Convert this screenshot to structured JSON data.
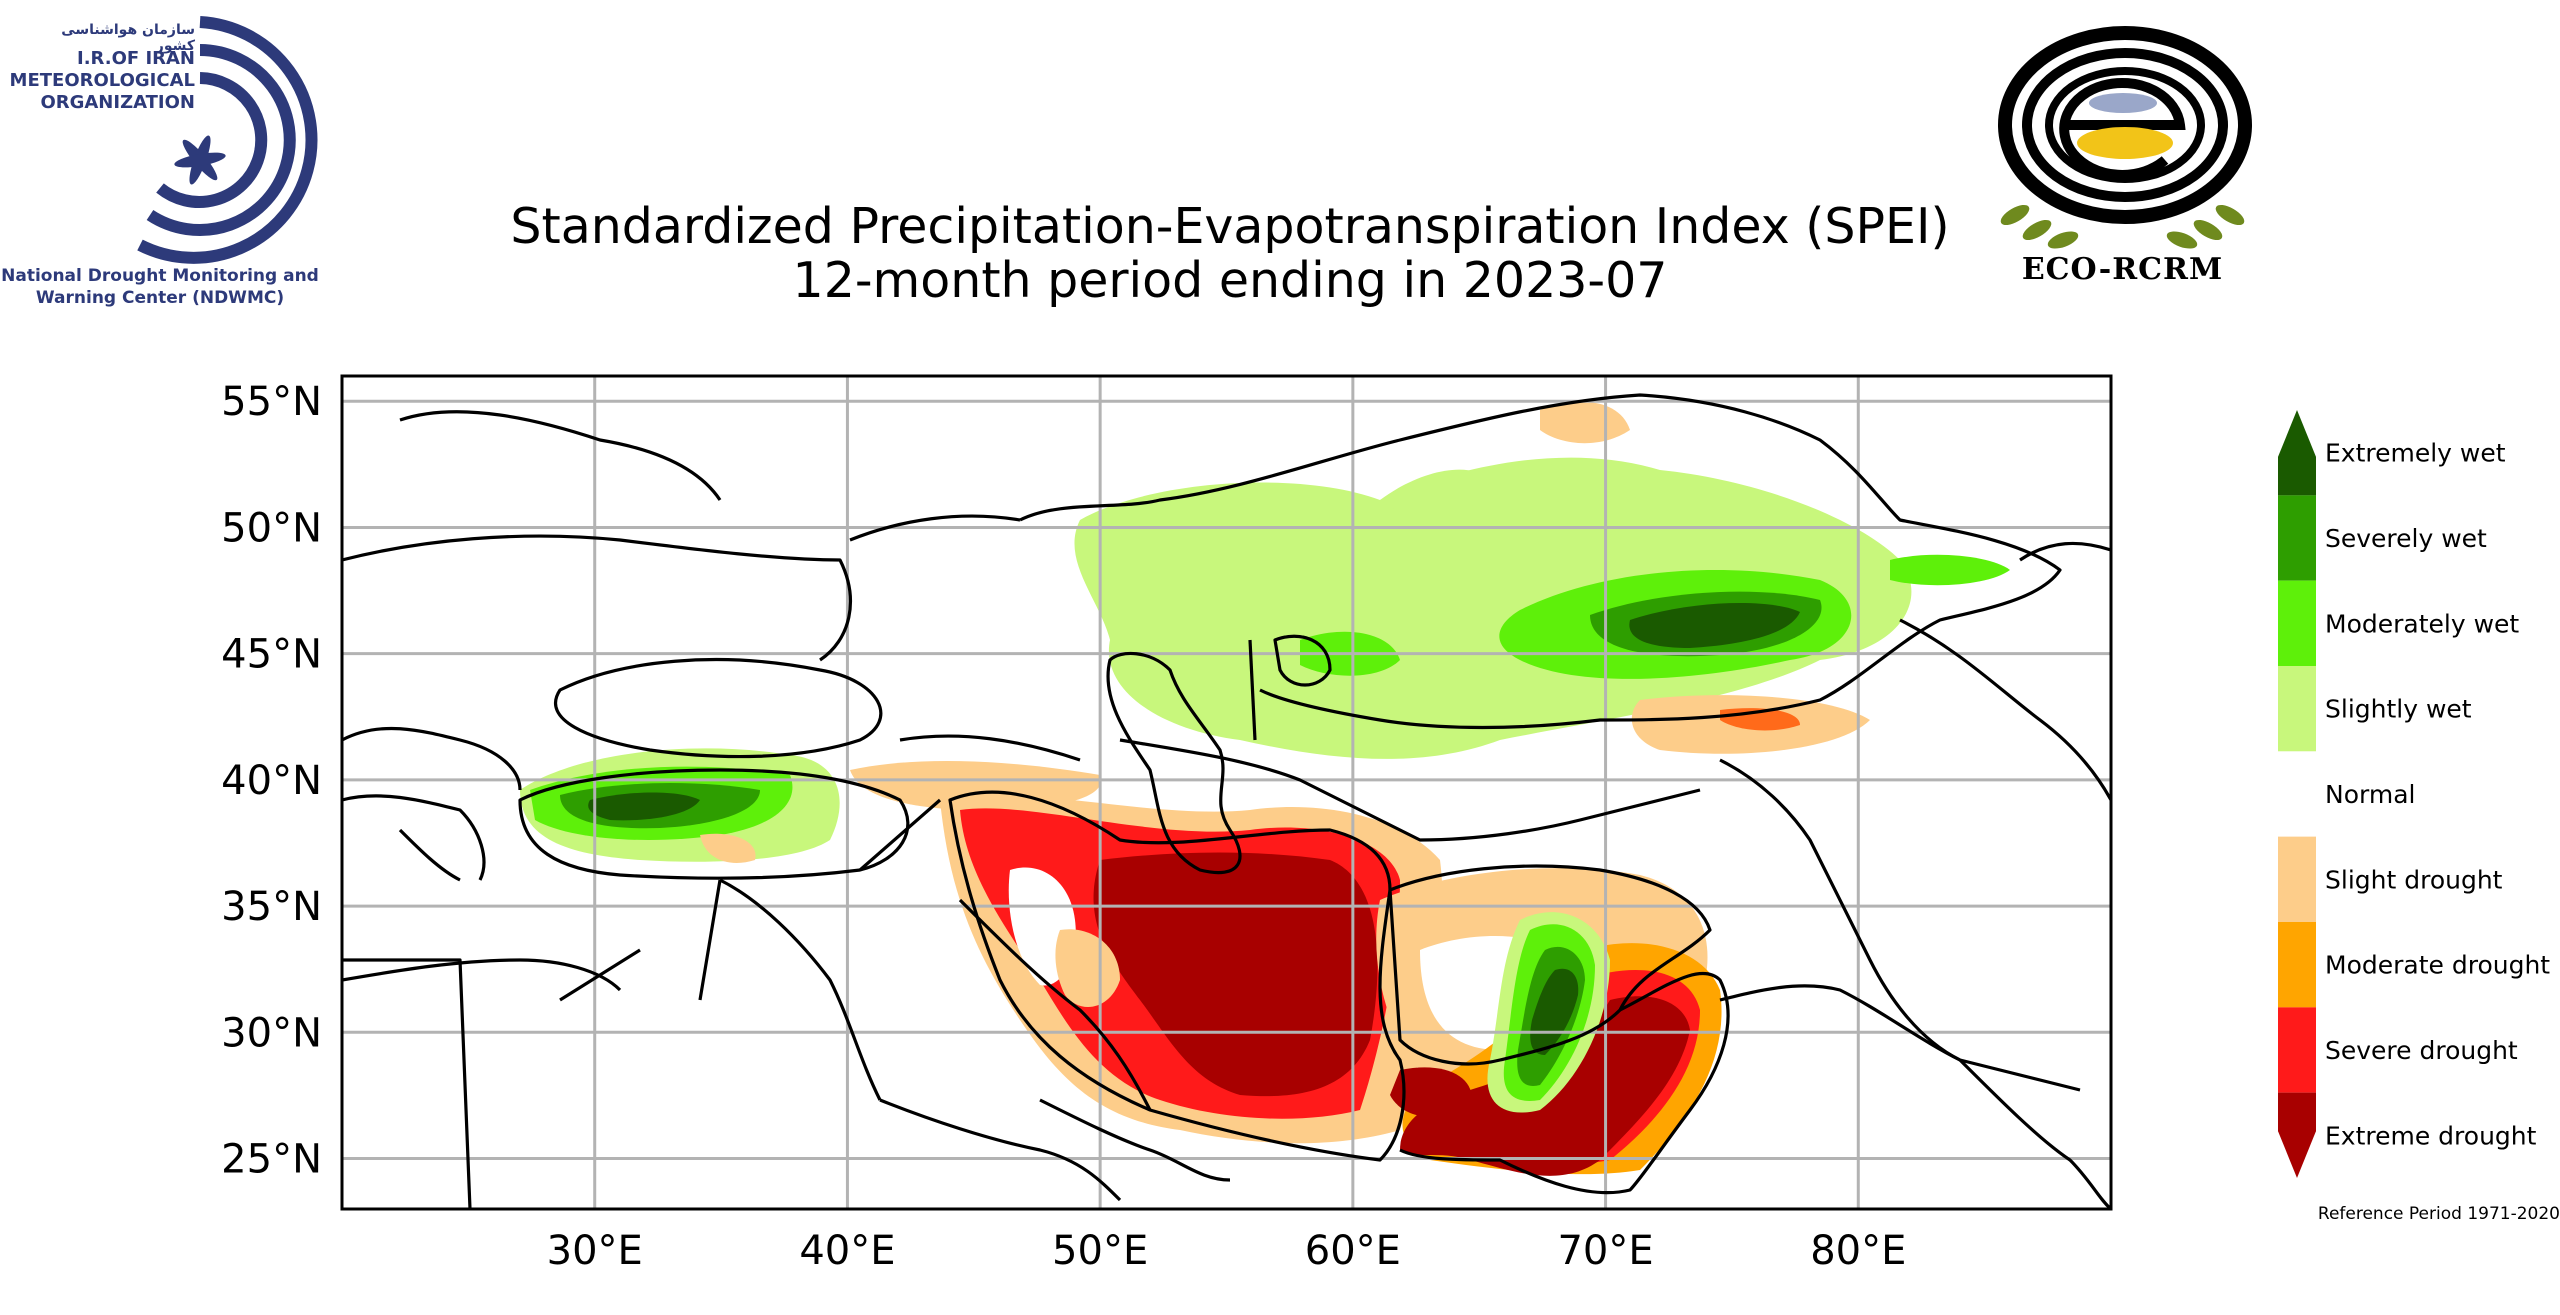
{
  "logos": {
    "left": {
      "persian_name": "سازمان هواشناسی کشور",
      "org_line1": "I.R.OF IRAN",
      "org_line2": "METEOROLOGICAL",
      "org_line3": "ORGANIZATION",
      "center_line1": "National Drought Monitoring and",
      "center_line2": "Warning Center (NDWMC)"
    },
    "right": {
      "text": "ECO-RCRM"
    }
  },
  "title": {
    "line1": "Standardized Precipitation-Evapotranspiration Index (SPEI)",
    "line2": "12-month period ending in 2023-07"
  },
  "map": {
    "lat_labels": [
      "55°N",
      "50°N",
      "45°N",
      "40°N",
      "35°N",
      "30°N",
      "25°N"
    ],
    "lat_values": [
      55,
      50,
      45,
      40,
      35,
      30,
      25
    ],
    "lon_labels": [
      "30°E",
      "40°E",
      "50°E",
      "60°E",
      "70°E",
      "80°E"
    ],
    "lon_values": [
      30,
      40,
      50,
      60,
      70,
      80
    ],
    "extent": {
      "lon_min": 20,
      "lon_max": 90,
      "lat_min": 23,
      "lat_max": 56
    },
    "gridlines": true
  },
  "legend": {
    "classes": [
      {
        "label": "Extremely wet",
        "color": "#1a5a00"
      },
      {
        "label": "Severely wet",
        "color": "#2e9e00"
      },
      {
        "label": "Moderately wet",
        "color": "#5ef00a"
      },
      {
        "label": "Slightly wet",
        "color": "#c8f77c"
      },
      {
        "label": "Normal",
        "color": "#ffffff"
      },
      {
        "label": "Slight drought",
        "color": "#fdcd8a"
      },
      {
        "label": "Moderate drought",
        "color": "#ffa500"
      },
      {
        "label": "Severe drought",
        "color": "#ff1a1a"
      },
      {
        "label": "Extreme drought",
        "color": "#a80000"
      }
    ],
    "reference_period": "Reference Period 1971-2020"
  }
}
